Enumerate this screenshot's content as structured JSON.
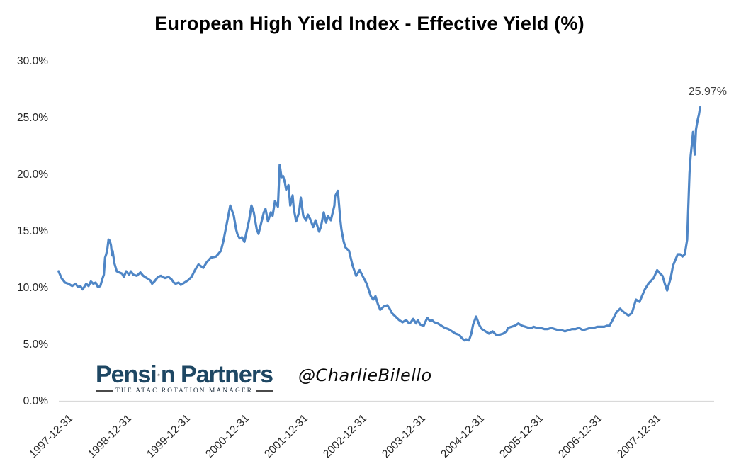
{
  "title": "European High Yield Index - Effective Yield (%)",
  "annotations": {
    "end_value_label": "25.97%",
    "watermark_handle": "@CharlieBilello"
  },
  "logo": {
    "name_left": "Pensi",
    "name_right": "n Partners",
    "icon": "rotation-arrows-icon",
    "tagline": "THE ATAC ROTATION MANAGER"
  },
  "colors": {
    "line": "#4f86c6",
    "axis_line": "#d9d9d9",
    "tick_text": "#262626",
    "end_label_text": "#3f3f3f",
    "logo_navy": "#1e4763",
    "background": "#ffffff"
  },
  "chart_data": {
    "type": "line",
    "title": "European High Yield Index - Effective Yield (%)",
    "x_axis_note": "points use t = years elapsed since 1997-12-31; one x tick per year",
    "x_tick_labels": [
      "1997-12-31",
      "1998-12-31",
      "1999-12-31",
      "2000-12-31",
      "2001-12-31",
      "2002-12-31",
      "2003-12-31",
      "2004-12-31",
      "2005-12-31",
      "2006-12-31",
      "2007-12-31"
    ],
    "y_tick_labels": [
      "30.0%",
      "25.0%",
      "20.0%",
      "15.0%",
      "10.0%",
      "5.0%",
      "0.0%"
    ],
    "y_tick_values": [
      30,
      25,
      20,
      15,
      10,
      5,
      0
    ],
    "ylim": [
      0,
      30
    ],
    "grid": false,
    "legend": "none",
    "line_color": "#4f86c6",
    "end_label": "25.97%",
    "series": [
      {
        "name": "Effective Yield (%)",
        "points": [
          [
            -0.04,
            11.5
          ],
          [
            0.01,
            10.9
          ],
          [
            0.07,
            10.5
          ],
          [
            0.13,
            10.4
          ],
          [
            0.19,
            10.2
          ],
          [
            0.25,
            10.4
          ],
          [
            0.29,
            10.1
          ],
          [
            0.33,
            10.2
          ],
          [
            0.37,
            9.9
          ],
          [
            0.43,
            10.4
          ],
          [
            0.47,
            10.2
          ],
          [
            0.51,
            10.6
          ],
          [
            0.55,
            10.4
          ],
          [
            0.59,
            10.5
          ],
          [
            0.63,
            10.1
          ],
          [
            0.67,
            10.2
          ],
          [
            0.71,
            10.9
          ],
          [
            0.73,
            11.2
          ],
          [
            0.75,
            12.7
          ],
          [
            0.77,
            13.0
          ],
          [
            0.79,
            13.5
          ],
          [
            0.81,
            14.3
          ],
          [
            0.83,
            14.2
          ],
          [
            0.85,
            13.8
          ],
          [
            0.87,
            12.9
          ],
          [
            0.88,
            13.3
          ],
          [
            0.91,
            12.2
          ],
          [
            0.95,
            11.5
          ],
          [
            0.99,
            11.4
          ],
          [
            1.04,
            11.3
          ],
          [
            1.07,
            11.0
          ],
          [
            1.11,
            11.5
          ],
          [
            1.16,
            11.2
          ],
          [
            1.19,
            11.5
          ],
          [
            1.23,
            11.2
          ],
          [
            1.29,
            11.1
          ],
          [
            1.35,
            11.4
          ],
          [
            1.4,
            11.1
          ],
          [
            1.46,
            10.9
          ],
          [
            1.52,
            10.7
          ],
          [
            1.55,
            10.4
          ],
          [
            1.59,
            10.6
          ],
          [
            1.65,
            11.0
          ],
          [
            1.7,
            11.1
          ],
          [
            1.73,
            11.0
          ],
          [
            1.77,
            10.9
          ],
          [
            1.83,
            11.0
          ],
          [
            1.88,
            10.8
          ],
          [
            1.92,
            10.5
          ],
          [
            1.95,
            10.4
          ],
          [
            2.0,
            10.5
          ],
          [
            2.04,
            10.3
          ],
          [
            2.1,
            10.5
          ],
          [
            2.16,
            10.7
          ],
          [
            2.22,
            11.0
          ],
          [
            2.28,
            11.6
          ],
          [
            2.34,
            12.1
          ],
          [
            2.42,
            11.8
          ],
          [
            2.48,
            12.3
          ],
          [
            2.55,
            12.7
          ],
          [
            2.64,
            12.8
          ],
          [
            2.72,
            13.3
          ],
          [
            2.76,
            14.1
          ],
          [
            2.82,
            15.7
          ],
          [
            2.88,
            17.3
          ],
          [
            2.94,
            16.4
          ],
          [
            2.98,
            15.2
          ],
          [
            3.0,
            14.8
          ],
          [
            3.04,
            14.4
          ],
          [
            3.08,
            14.5
          ],
          [
            3.12,
            14.1
          ],
          [
            3.2,
            16.0
          ],
          [
            3.24,
            17.3
          ],
          [
            3.28,
            16.7
          ],
          [
            3.33,
            15.2
          ],
          [
            3.36,
            14.8
          ],
          [
            3.45,
            16.7
          ],
          [
            3.48,
            17.0
          ],
          [
            3.52,
            15.9
          ],
          [
            3.57,
            16.7
          ],
          [
            3.6,
            16.4
          ],
          [
            3.64,
            17.7
          ],
          [
            3.69,
            17.2
          ],
          [
            3.72,
            20.9
          ],
          [
            3.75,
            19.8
          ],
          [
            3.78,
            19.9
          ],
          [
            3.81,
            19.3
          ],
          [
            3.83,
            18.7
          ],
          [
            3.87,
            19.1
          ],
          [
            3.9,
            17.3
          ],
          [
            3.94,
            18.2
          ],
          [
            3.96,
            17.0
          ],
          [
            4.0,
            15.9
          ],
          [
            4.05,
            16.7
          ],
          [
            4.08,
            18.0
          ],
          [
            4.12,
            16.4
          ],
          [
            4.17,
            16.0
          ],
          [
            4.2,
            16.5
          ],
          [
            4.24,
            16.1
          ],
          [
            4.29,
            15.4
          ],
          [
            4.33,
            16.0
          ],
          [
            4.39,
            15.0
          ],
          [
            4.42,
            15.4
          ],
          [
            4.47,
            16.7
          ],
          [
            4.51,
            15.8
          ],
          [
            4.54,
            16.4
          ],
          [
            4.59,
            16.0
          ],
          [
            4.65,
            17.3
          ],
          [
            4.66,
            18.1
          ],
          [
            4.71,
            18.6
          ],
          [
            4.75,
            16.1
          ],
          [
            4.77,
            15.2
          ],
          [
            4.81,
            14.1
          ],
          [
            4.84,
            13.6
          ],
          [
            4.9,
            13.3
          ],
          [
            4.96,
            12.0
          ],
          [
            5.02,
            11.1
          ],
          [
            5.08,
            11.6
          ],
          [
            5.14,
            11.0
          ],
          [
            5.2,
            10.4
          ],
          [
            5.27,
            9.3
          ],
          [
            5.31,
            9.0
          ],
          [
            5.35,
            9.3
          ],
          [
            5.39,
            8.6
          ],
          [
            5.43,
            8.1
          ],
          [
            5.49,
            8.4
          ],
          [
            5.55,
            8.5
          ],
          [
            5.59,
            8.2
          ],
          [
            5.63,
            7.8
          ],
          [
            5.69,
            7.5
          ],
          [
            5.75,
            7.2
          ],
          [
            5.81,
            7.0
          ],
          [
            5.87,
            7.2
          ],
          [
            5.92,
            6.9
          ],
          [
            5.95,
            7.0
          ],
          [
            5.99,
            7.3
          ],
          [
            6.04,
            6.9
          ],
          [
            6.07,
            7.2
          ],
          [
            6.11,
            6.8
          ],
          [
            6.17,
            6.7
          ],
          [
            6.23,
            7.4
          ],
          [
            6.28,
            7.1
          ],
          [
            6.31,
            7.2
          ],
          [
            6.35,
            7.0
          ],
          [
            6.41,
            6.9
          ],
          [
            6.47,
            6.7
          ],
          [
            6.53,
            6.5
          ],
          [
            6.59,
            6.4
          ],
          [
            6.65,
            6.2
          ],
          [
            6.71,
            6.0
          ],
          [
            6.77,
            5.9
          ],
          [
            6.82,
            5.6
          ],
          [
            6.86,
            5.4
          ],
          [
            6.89,
            5.5
          ],
          [
            6.94,
            5.4
          ],
          [
            6.98,
            6.0
          ],
          [
            7.01,
            6.8
          ],
          [
            7.06,
            7.5
          ],
          [
            7.12,
            6.7
          ],
          [
            7.16,
            6.4
          ],
          [
            7.22,
            6.2
          ],
          [
            7.28,
            6.0
          ],
          [
            7.34,
            6.2
          ],
          [
            7.4,
            5.9
          ],
          [
            7.46,
            5.9
          ],
          [
            7.52,
            6.0
          ],
          [
            7.58,
            6.2
          ],
          [
            7.6,
            6.5
          ],
          [
            7.66,
            6.6
          ],
          [
            7.72,
            6.7
          ],
          [
            7.78,
            6.9
          ],
          [
            7.84,
            6.7
          ],
          [
            7.9,
            6.6
          ],
          [
            7.96,
            6.5
          ],
          [
            8.0,
            6.5
          ],
          [
            8.04,
            6.6
          ],
          [
            8.1,
            6.5
          ],
          [
            8.16,
            6.5
          ],
          [
            8.22,
            6.4
          ],
          [
            8.28,
            6.4
          ],
          [
            8.34,
            6.5
          ],
          [
            8.4,
            6.4
          ],
          [
            8.46,
            6.3
          ],
          [
            8.52,
            6.3
          ],
          [
            8.57,
            6.2
          ],
          [
            8.63,
            6.3
          ],
          [
            8.69,
            6.4
          ],
          [
            8.75,
            6.4
          ],
          [
            8.81,
            6.5
          ],
          [
            8.88,
            6.3
          ],
          [
            8.94,
            6.4
          ],
          [
            9.0,
            6.5
          ],
          [
            9.06,
            6.5
          ],
          [
            9.12,
            6.6
          ],
          [
            9.18,
            6.6
          ],
          [
            9.24,
            6.6
          ],
          [
            9.29,
            6.7
          ],
          [
            9.33,
            6.7
          ],
          [
            9.39,
            7.3
          ],
          [
            9.45,
            7.9
          ],
          [
            9.51,
            8.2
          ],
          [
            9.57,
            7.9
          ],
          [
            9.65,
            7.6
          ],
          [
            9.71,
            7.8
          ],
          [
            9.78,
            9.0
          ],
          [
            9.84,
            8.8
          ],
          [
            9.93,
            9.9
          ],
          [
            9.99,
            10.4
          ],
          [
            10.08,
            10.9
          ],
          [
            10.14,
            11.6
          ],
          [
            10.19,
            11.3
          ],
          [
            10.23,
            11.1
          ],
          [
            10.27,
            10.4
          ],
          [
            10.31,
            9.8
          ],
          [
            10.37,
            10.9
          ],
          [
            10.41,
            12.0
          ],
          [
            10.45,
            12.5
          ],
          [
            10.49,
            13.0
          ],
          [
            10.53,
            13.0
          ],
          [
            10.57,
            12.8
          ],
          [
            10.61,
            13.0
          ],
          [
            10.65,
            14.3
          ],
          [
            10.67,
            17.2
          ],
          [
            10.69,
            20.2
          ],
          [
            10.71,
            21.7
          ],
          [
            10.73,
            22.7
          ],
          [
            10.75,
            23.8
          ],
          [
            10.77,
            22.4
          ],
          [
            10.78,
            21.8
          ],
          [
            10.8,
            24.0
          ],
          [
            10.83,
            24.9
          ],
          [
            10.85,
            25.3
          ],
          [
            10.87,
            25.97
          ]
        ]
      }
    ]
  }
}
